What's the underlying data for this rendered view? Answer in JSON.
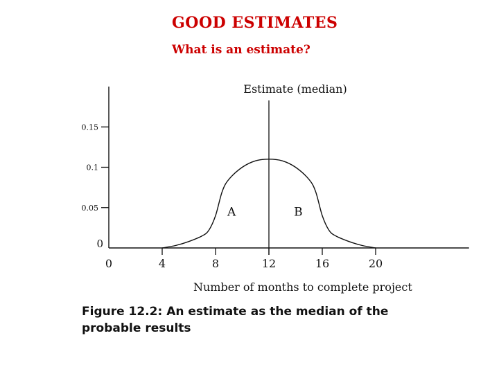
{
  "slide": {
    "title": "GOOD  ESTIMATES",
    "subtitle": "What is an estimate?",
    "accent_color": "#cc0000"
  },
  "caption": "Figure 12.2: An estimate as the median of the probable results",
  "chart_data": {
    "type": "line",
    "title": "Estimate (median)",
    "xlabel": "Number of months to complete project",
    "ylabel": "",
    "xlim": [
      0,
      27
    ],
    "ylim": [
      0,
      0.2
    ],
    "x_ticks": [
      0,
      4,
      8,
      12,
      16,
      20
    ],
    "y_ticks": [
      0,
      0.05,
      0.1,
      0.15
    ],
    "y_tick_labels": [
      "0",
      "0.05",
      "0.1",
      "0.15"
    ],
    "grid": false,
    "median_x": 12,
    "series": [
      {
        "x": [
          4,
          5,
          6,
          7,
          7.5,
          8,
          8.5,
          9,
          10,
          11,
          12,
          13,
          14,
          15,
          15.5,
          16,
          16.5,
          17,
          18,
          19,
          20
        ],
        "y": [
          0,
          0.003,
          0.008,
          0.015,
          0.022,
          0.04,
          0.07,
          0.085,
          0.1,
          0.108,
          0.11,
          0.108,
          0.1,
          0.085,
          0.07,
          0.04,
          0.022,
          0.015,
          0.008,
          0.003,
          0
        ]
      }
    ],
    "annotations": [
      {
        "text": "A",
        "x": 9.2,
        "y": 0.045
      },
      {
        "text": "B",
        "x": 14.2,
        "y": 0.045
      }
    ]
  }
}
